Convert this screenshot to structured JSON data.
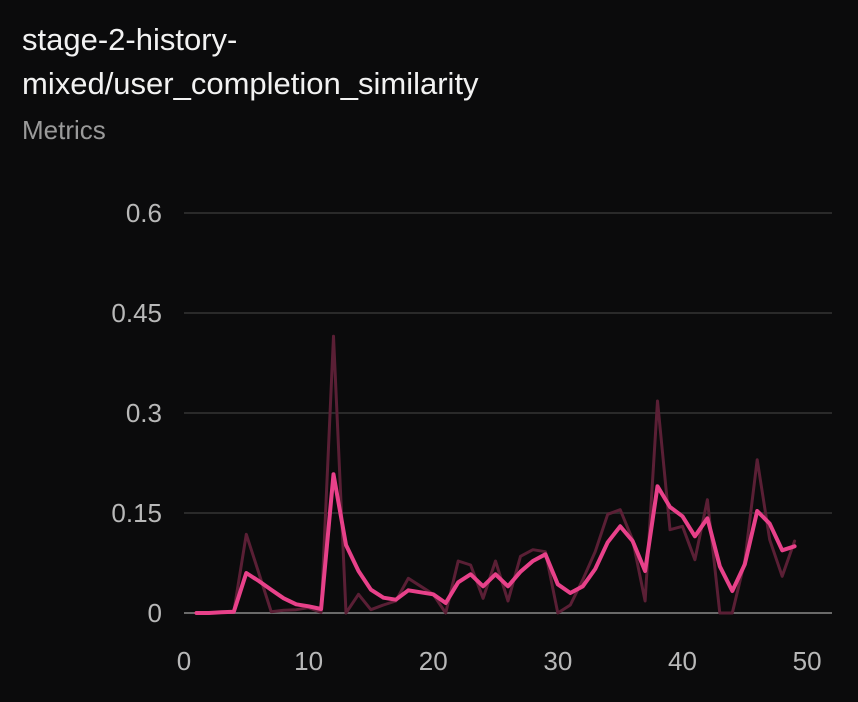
{
  "panel": {
    "title_line1": "stage-2-history-",
    "title_line2": "mixed/user_completion_similarity",
    "subtitle": "Metrics"
  },
  "colors": {
    "background": "#0b0b0c",
    "grid": "#2a2a2a",
    "axis": "#6a6a6a",
    "raw_series": "#5a1f35",
    "smoothed_series": "#e8418a"
  },
  "chart_data": {
    "type": "line",
    "xlim": [
      0,
      52
    ],
    "ylim": [
      0,
      0.6
    ],
    "xticks": [
      0,
      10,
      20,
      30,
      40,
      50
    ],
    "yticks": [
      0,
      0.15,
      0.3,
      0.45,
      0.6
    ],
    "ytick_labels": [
      "0",
      "0.15",
      "0.3",
      "0.45",
      "0.6"
    ],
    "grid": true,
    "legend": "none",
    "series": [
      {
        "style": "raw",
        "x": [
          1,
          2,
          3,
          4,
          5,
          6,
          7,
          8,
          9,
          10,
          11,
          12,
          13,
          14,
          15,
          16,
          17,
          18,
          19,
          20,
          21,
          22,
          23,
          24,
          25,
          26,
          27,
          28,
          29,
          30,
          31,
          32,
          33,
          34,
          35,
          36,
          37,
          38,
          39,
          40,
          41,
          42,
          43,
          44,
          45,
          46,
          47,
          48,
          49
        ],
        "y": [
          0,
          0,
          0.001,
          0.002,
          0.118,
          0.06,
          0.002,
          0.004,
          0.005,
          0.008,
          0.001,
          0.415,
          0,
          0.028,
          0.005,
          0.012,
          0.018,
          0.052,
          0.04,
          0.028,
          0,
          0.078,
          0.072,
          0.022,
          0.078,
          0.018,
          0.085,
          0.095,
          0.092,
          0,
          0.012,
          0.05,
          0.092,
          0.148,
          0.155,
          0.11,
          0.018,
          0.318,
          0.125,
          0.13,
          0.08,
          0.17,
          0,
          0,
          0.078,
          0.23,
          0.11,
          0.055,
          0.108
        ]
      },
      {
        "style": "smoothed",
        "x": [
          1,
          2,
          3,
          4,
          5,
          6,
          7,
          8,
          9,
          10,
          11,
          12,
          13,
          14,
          15,
          16,
          17,
          18,
          19,
          20,
          21,
          22,
          23,
          24,
          25,
          26,
          27,
          28,
          29,
          30,
          31,
          32,
          33,
          34,
          35,
          36,
          37,
          38,
          39,
          40,
          41,
          42,
          43,
          44,
          45,
          46,
          47,
          48,
          49
        ],
        "y": [
          0,
          0,
          0.001,
          0.002,
          0.06,
          0.048,
          0.035,
          0.022,
          0.013,
          0.01,
          0.006,
          0.208,
          0.102,
          0.063,
          0.035,
          0.023,
          0.02,
          0.034,
          0.031,
          0.028,
          0.015,
          0.046,
          0.058,
          0.04,
          0.058,
          0.04,
          0.062,
          0.078,
          0.088,
          0.043,
          0.03,
          0.04,
          0.066,
          0.106,
          0.13,
          0.108,
          0.063,
          0.19,
          0.159,
          0.145,
          0.115,
          0.142,
          0.07,
          0.033,
          0.073,
          0.153,
          0.134,
          0.094,
          0.1
        ]
      }
    ]
  }
}
